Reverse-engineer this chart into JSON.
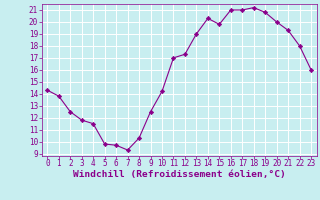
{
  "x": [
    0,
    1,
    2,
    3,
    4,
    5,
    6,
    7,
    8,
    9,
    10,
    11,
    12,
    13,
    14,
    15,
    16,
    17,
    18,
    19,
    20,
    21,
    22,
    23
  ],
  "y": [
    14.3,
    13.8,
    12.5,
    11.8,
    11.5,
    9.8,
    9.7,
    9.3,
    10.3,
    12.5,
    14.2,
    17.0,
    17.3,
    19.0,
    20.3,
    19.8,
    21.0,
    21.0,
    21.2,
    20.8,
    20.0,
    19.3,
    18.0,
    16.0
  ],
  "line_color": "#8b008b",
  "marker": "D",
  "marker_size": 2.2,
  "bg_color": "#c8eef0",
  "grid_color": "#ffffff",
  "xlabel": "Windchill (Refroidissement éolien,°C)",
  "xlim": [
    -0.5,
    23.5
  ],
  "ylim": [
    8.8,
    21.5
  ],
  "yticks": [
    9,
    10,
    11,
    12,
    13,
    14,
    15,
    16,
    17,
    18,
    19,
    20,
    21
  ],
  "xticks": [
    0,
    1,
    2,
    3,
    4,
    5,
    6,
    7,
    8,
    9,
    10,
    11,
    12,
    13,
    14,
    15,
    16,
    17,
    18,
    19,
    20,
    21,
    22,
    23
  ],
  "tick_fontsize": 5.5,
  "xlabel_fontsize": 6.8
}
